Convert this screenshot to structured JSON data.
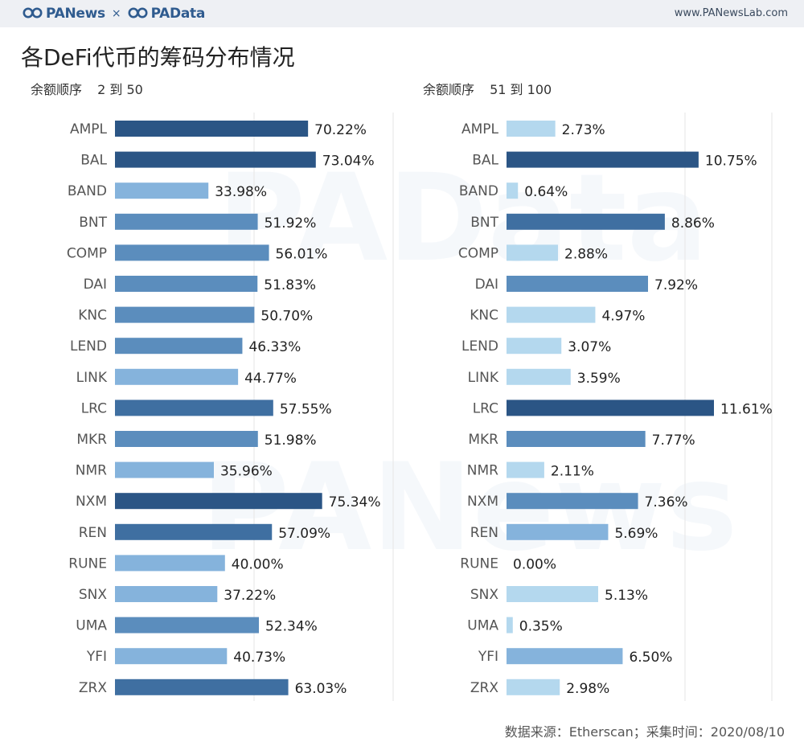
{
  "header": {
    "logo_left": "PANews",
    "separator": "×",
    "logo_right": "PAData",
    "url": "www.PANewsLab.com"
  },
  "title": "各DeFi代币的筹码分布情况",
  "watermarks": [
    "PAData",
    "PANews"
  ],
  "panels": [
    {
      "label": "余额顺序",
      "range": "2 到 50"
    },
    {
      "label": "余额顺序",
      "range": "51 到 100"
    }
  ],
  "footer": "数据来源：Etherscan；采集时间：2020/08/10",
  "colors": {
    "darkest": "#2b5585",
    "dark": "#3f6fa1",
    "mid": "#5b8dbd",
    "light": "#85b3dc",
    "lightest": "#b4d8ee",
    "grid": "#e6e6e6"
  },
  "chart_data": [
    {
      "type": "bar",
      "orientation": "horizontal",
      "title": "余额顺序 2 到 50",
      "categories": [
        "AMPL",
        "BAL",
        "BAND",
        "BNT",
        "COMP",
        "DAI",
        "KNC",
        "LEND",
        "LINK",
        "LRC",
        "MKR",
        "NMR",
        "NXM",
        "REN",
        "RUNE",
        "SNX",
        "UMA",
        "YFI",
        "ZRX"
      ],
      "values": [
        70.22,
        73.04,
        33.98,
        51.92,
        56.01,
        51.83,
        50.7,
        46.33,
        44.77,
        57.55,
        51.98,
        35.96,
        75.34,
        57.09,
        40.0,
        37.22,
        52.34,
        40.73,
        63.03
      ],
      "labels": [
        "70.22%",
        "73.04%",
        "33.98%",
        "51.92%",
        "56.01%",
        "51.83%",
        "50.70%",
        "46.33%",
        "44.77%",
        "57.55%",
        "51.98%",
        "35.96%",
        "75.34%",
        "57.09%",
        "40.00%",
        "37.22%",
        "52.34%",
        "40.73%",
        "63.03%"
      ],
      "xlim": [
        0,
        100
      ],
      "unit": "%"
    },
    {
      "type": "bar",
      "orientation": "horizontal",
      "title": "余额顺序 51 到 100",
      "categories": [
        "AMPL",
        "BAL",
        "BAND",
        "BNT",
        "COMP",
        "DAI",
        "KNC",
        "LEND",
        "LINK",
        "LRC",
        "MKR",
        "NMR",
        "NXM",
        "REN",
        "RUNE",
        "SNX",
        "UMA",
        "YFI",
        "ZRX"
      ],
      "values": [
        2.73,
        10.75,
        0.64,
        8.86,
        2.88,
        7.92,
        4.97,
        3.07,
        3.59,
        11.61,
        7.77,
        2.11,
        7.36,
        5.69,
        0.0,
        5.13,
        0.35,
        6.5,
        2.98
      ],
      "labels": [
        "2.73%",
        "10.75%",
        "0.64%",
        "8.86%",
        "2.88%",
        "7.92%",
        "4.97%",
        "3.07%",
        "3.59%",
        "11.61%",
        "7.77%",
        "2.11%",
        "7.36%",
        "5.69%",
        "0.00%",
        "5.13%",
        "0.35%",
        "6.50%",
        "2.98%"
      ],
      "xlim": [
        0,
        15
      ],
      "unit": "%"
    }
  ]
}
